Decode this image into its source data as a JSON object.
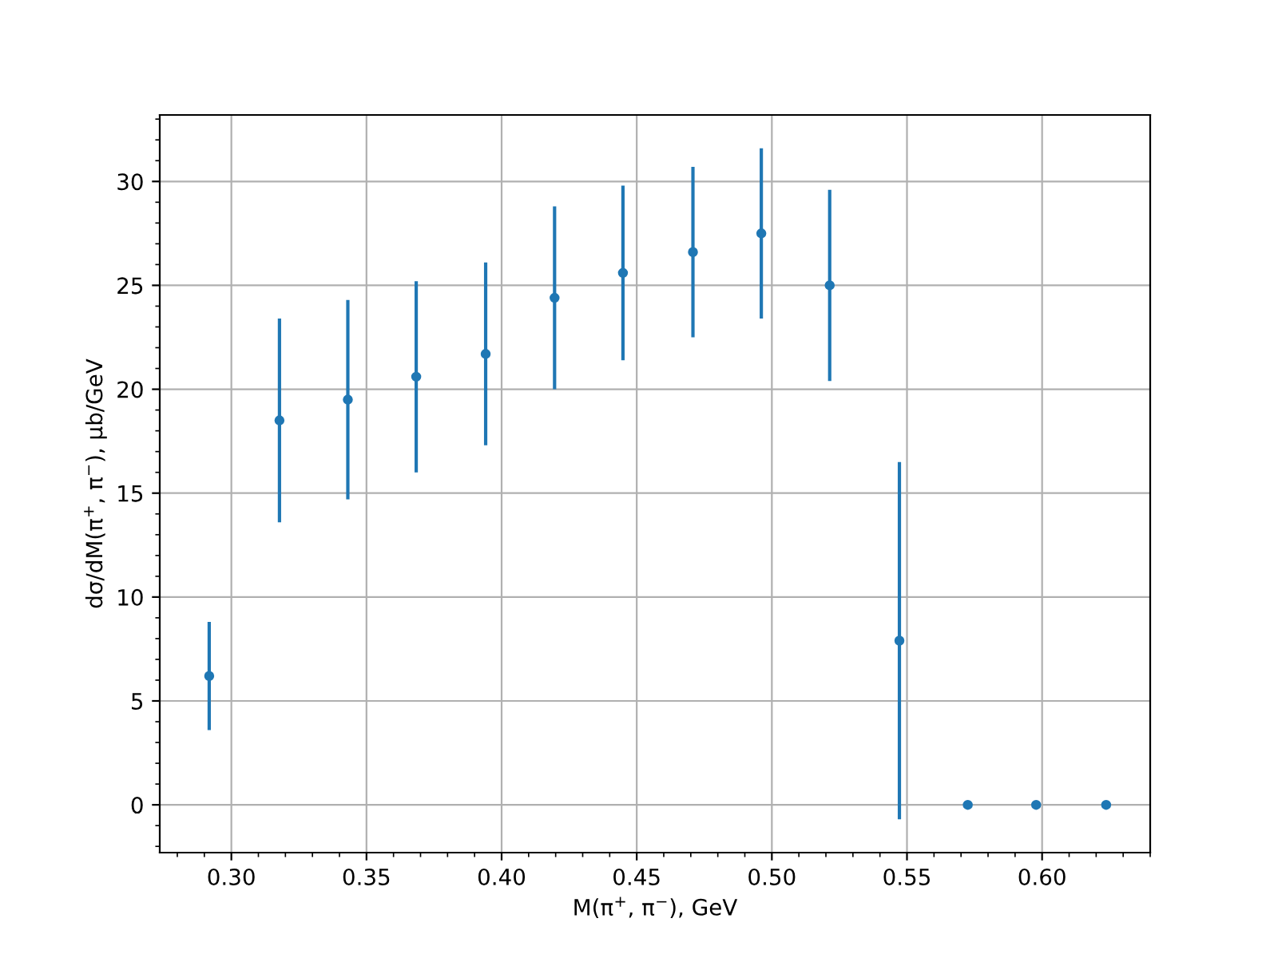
{
  "chart_data": {
    "type": "scatter",
    "xlabel": "M(π$^{+}$, π$^{−}$), GeV",
    "ylabel": "dσ/dM(π$^{+}$, π$^{−}$), μb/GeV",
    "x": [
      0.2918,
      0.3178,
      0.3431,
      0.3684,
      0.3941,
      0.4196,
      0.4449,
      0.4708,
      0.4961,
      0.5214,
      0.5472,
      0.5725,
      0.5978,
      0.6237
    ],
    "series": [
      {
        "color": "#1f77b4",
        "values": [
          6.2,
          18.5,
          19.5,
          20.6,
          21.7,
          24.4,
          25.6,
          26.6,
          27.5,
          25.0,
          7.9,
          0,
          0,
          0
        ],
        "errors": [
          2.6,
          4.9,
          4.8,
          4.6,
          4.4,
          4.4,
          4.2,
          4.1,
          4.1,
          4.6,
          8.6,
          null,
          null,
          null
        ]
      }
    ],
    "xlim": [
      0.2735,
      0.64
    ],
    "ylim": [
      -2.3,
      33.2
    ],
    "xticks": [
      {
        "value": 0.3,
        "label": "0.30"
      },
      0.35,
      {
        "value": 0.4,
        "label": "0.40"
      },
      0.45,
      {
        "value": 0.5,
        "label": "0.50"
      },
      0.55,
      {
        "value": 0.6,
        "label": "0.60"
      }
    ],
    "yticks": [
      0,
      5,
      10,
      15,
      20,
      25,
      30
    ],
    "grid": true,
    "marker": "circle"
  }
}
